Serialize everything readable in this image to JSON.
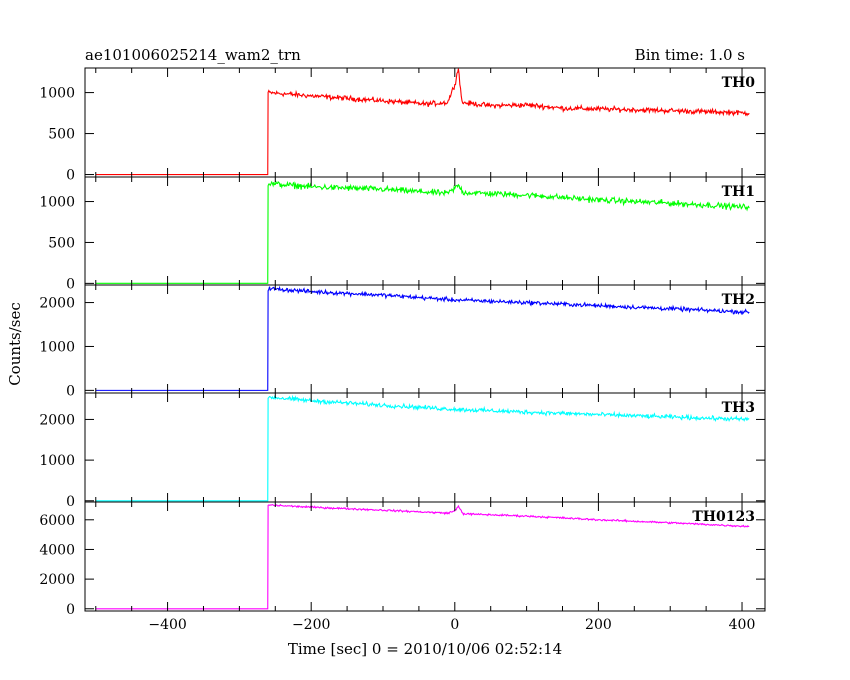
{
  "header": {
    "title": "ae101006025214_wam2_trn",
    "bin_time": "Bin time: 1.0 s"
  },
  "chart_data": {
    "type": "line",
    "title": "ae101006025214_wam2_trn",
    "subtitle": "Bin time: 1.0 s",
    "xlabel": "Time [sec] 0 = 2010/10/06 02:52:14",
    "ylabel": "Counts/sec",
    "xlim": [
      -515,
      432
    ],
    "x_ticks": [
      -400,
      -200,
      0,
      200,
      400
    ],
    "x_tick_labels": [
      "−400",
      "−200",
      "0",
      "200",
      "400"
    ],
    "grid": false,
    "x_start": -500,
    "x_end": 410,
    "onset_x": -260,
    "panels": [
      {
        "name": "TH0",
        "color": "#ff0000",
        "ylim": [
          -30,
          1300
        ],
        "yticks": [
          0,
          500,
          1000
        ],
        "pre_level": 0,
        "series": [
          [
            -260,
            1000
          ],
          [
            -200,
            960
          ],
          [
            -100,
            900
          ],
          [
            -40,
            860
          ],
          [
            -10,
            880
          ],
          [
            0,
            1100
          ],
          [
            5,
            1300
          ],
          [
            10,
            880
          ],
          [
            50,
            840
          ],
          [
            100,
            850
          ],
          [
            150,
            810
          ],
          [
            200,
            800
          ],
          [
            300,
            780
          ],
          [
            410,
            750
          ]
        ],
        "noise": 30
      },
      {
        "name": "TH1",
        "color": "#00ff00",
        "ylim": [
          -20,
          1300
        ],
        "yticks": [
          0,
          500,
          1000
        ],
        "pre_level": 0,
        "series": [
          [
            -260,
            1220
          ],
          [
            -200,
            1180
          ],
          [
            -100,
            1150
          ],
          [
            -10,
            1100
          ],
          [
            0,
            1160
          ],
          [
            5,
            1200
          ],
          [
            12,
            1110
          ],
          [
            100,
            1080
          ],
          [
            200,
            1020
          ],
          [
            300,
            980
          ],
          [
            410,
            930
          ]
        ],
        "noise": 35
      },
      {
        "name": "TH2",
        "color": "#0000ff",
        "ylim": [
          -60,
          2400
        ],
        "yticks": [
          0,
          1000,
          2000
        ],
        "pre_level": 0,
        "series": [
          [
            -260,
            2320
          ],
          [
            -200,
            2250
          ],
          [
            -100,
            2170
          ],
          [
            0,
            2060
          ],
          [
            100,
            2000
          ],
          [
            200,
            1930
          ],
          [
            300,
            1860
          ],
          [
            410,
            1780
          ]
        ],
        "noise": 45
      },
      {
        "name": "TH3",
        "color": "#00ffff",
        "ylim": [
          -30,
          2650
        ],
        "yticks": [
          0,
          1000,
          2000
        ],
        "pre_level": 0,
        "series": [
          [
            -260,
            2550
          ],
          [
            -200,
            2460
          ],
          [
            -100,
            2350
          ],
          [
            0,
            2250
          ],
          [
            100,
            2180
          ],
          [
            200,
            2120
          ],
          [
            300,
            2060
          ],
          [
            410,
            2000
          ]
        ],
        "noise": 50
      },
      {
        "name": "TH0123",
        "color": "#ff00ff",
        "ylim": [
          -150,
          7200
        ],
        "yticks": [
          0,
          2000,
          4000,
          6000
        ],
        "pre_level": 0,
        "series": [
          [
            -260,
            7000
          ],
          [
            -200,
            6850
          ],
          [
            -100,
            6650
          ],
          [
            -10,
            6450
          ],
          [
            0,
            6600
          ],
          [
            5,
            6900
          ],
          [
            12,
            6400
          ],
          [
            100,
            6250
          ],
          [
            200,
            6000
          ],
          [
            300,
            5800
          ],
          [
            410,
            5550
          ]
        ],
        "noise": 60
      }
    ]
  }
}
